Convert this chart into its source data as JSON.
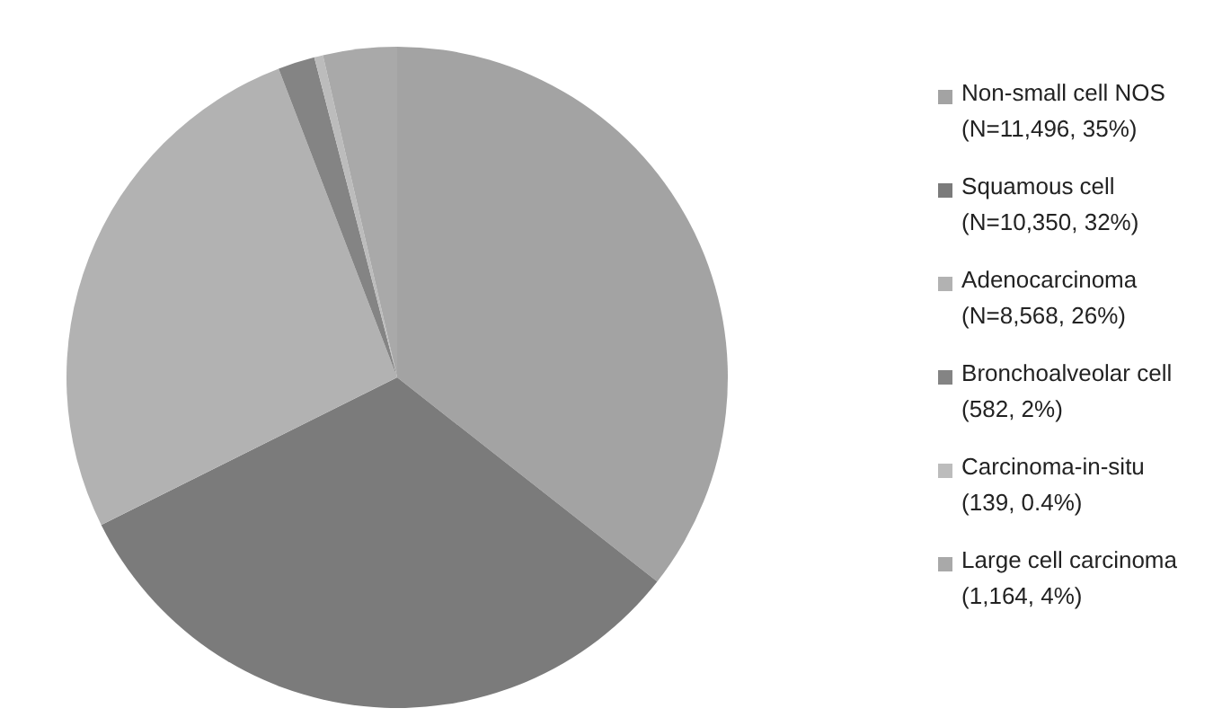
{
  "chart_data": {
    "type": "pie",
    "categories": [
      "Non-small cell NOS\n(N=11,496, 35%)",
      "Squamous cell\n(N=10,350, 32%)",
      "Adenocarcinoma\n(N=8,568, 26%)",
      "Bronchoalveolar cell\n(582, 2%)",
      "Carcinoma-in-situ\n(139, 0.4%)",
      "Large cell carcinoma\n(1,164, 4%)"
    ],
    "values": [
      11496,
      10350,
      8568,
      582,
      139,
      1164
    ],
    "colors": [
      "#a3a3a3",
      "#7b7b7b",
      "#b2b2b2",
      "#848484",
      "#bcbcbc",
      "#a9a9a9"
    ],
    "legend": "right"
  }
}
